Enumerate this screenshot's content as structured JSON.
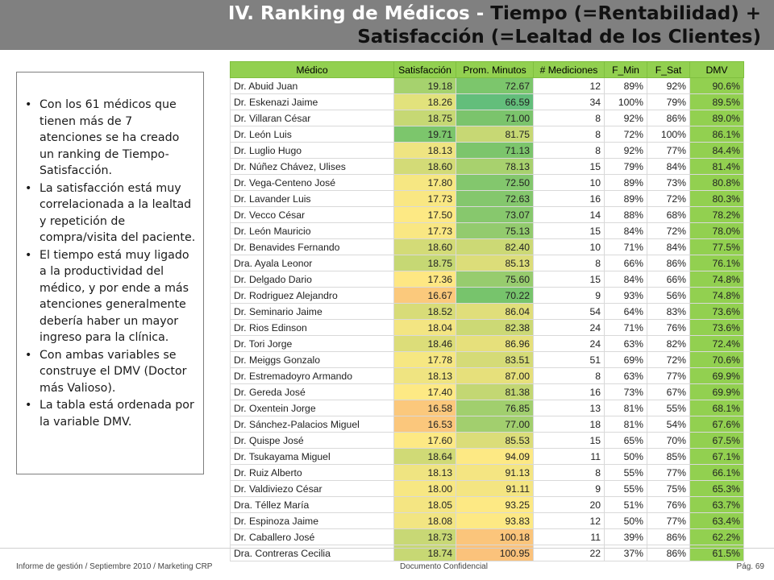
{
  "title": {
    "line1_part1": "IV. Ranking de Médicos - ",
    "line1_part2": "Tiempo (=Rentabilidad) +",
    "line2": "Satisfacción (=Lealtad de los Clientes)"
  },
  "bullets": [
    "Con los 61 médicos que tienen más de 7 atenciones se ha creado un ranking de Tiempo-Satisfacción.",
    "La satisfacción está muy correlacionada a la lealtad y repetición de compra/visita del paciente.",
    "El tiempo está muy ligado a la productividad del médico, y por ende a más atenciones generalmente debería haber un mayor ingreso para la clínica.",
    "Con ambas variables se construye el DMV (Doctor más Valioso).",
    "La tabla está ordenada por la variable DMV."
  ],
  "bullet_symbol": "•",
  "table": {
    "headers": [
      "Médico",
      "Satisfacción",
      "Prom. Minutos",
      "# Mediciones",
      "F_Min",
      "F_Sat",
      "DMV"
    ],
    "rows": [
      [
        "Dr. Abuid Juan",
        "19.18",
        "72.67",
        "12",
        "89%",
        "92%",
        "90.6%"
      ],
      [
        "Dr. Eskenazi Jaime",
        "18.26",
        "66.59",
        "34",
        "100%",
        "79%",
        "89.5%"
      ],
      [
        "Dr. Villaran César",
        "18.75",
        "71.00",
        "8",
        "92%",
        "86%",
        "89.0%"
      ],
      [
        "Dr. León Luis",
        "19.71",
        "81.75",
        "8",
        "72%",
        "100%",
        "86.1%"
      ],
      [
        "Dr. Luglio Hugo",
        "18.13",
        "71.13",
        "8",
        "92%",
        "77%",
        "84.4%"
      ],
      [
        "Dr. Núñez Chávez, Ulises",
        "18.60",
        "78.13",
        "15",
        "79%",
        "84%",
        "81.4%"
      ],
      [
        "Dr. Vega-Centeno José",
        "17.80",
        "72.50",
        "10",
        "89%",
        "73%",
        "80.8%"
      ],
      [
        "Dr. Lavander Luis",
        "17.73",
        "72.63",
        "16",
        "89%",
        "72%",
        "80.3%"
      ],
      [
        "Dr. Vecco César",
        "17.50",
        "73.07",
        "14",
        "88%",
        "68%",
        "78.2%"
      ],
      [
        "Dr. León Mauricio",
        "17.73",
        "75.13",
        "15",
        "84%",
        "72%",
        "78.0%"
      ],
      [
        "Dr. Benavides Fernando",
        "18.60",
        "82.40",
        "10",
        "71%",
        "84%",
        "77.5%"
      ],
      [
        "Dra. Ayala Leonor",
        "18.75",
        "85.13",
        "8",
        "66%",
        "86%",
        "76.1%"
      ],
      [
        "Dr. Delgado Dario",
        "17.36",
        "75.60",
        "15",
        "84%",
        "66%",
        "74.8%"
      ],
      [
        "Dr. Rodriguez Alejandro",
        "16.67",
        "70.22",
        "9",
        "93%",
        "56%",
        "74.8%"
      ],
      [
        "Dr. Seminario Jaime",
        "18.52",
        "86.04",
        "54",
        "64%",
        "83%",
        "73.6%"
      ],
      [
        "Dr. Rios Edinson",
        "18.04",
        "82.38",
        "24",
        "71%",
        "76%",
        "73.6%"
      ],
      [
        "Dr. Tori Jorge",
        "18.46",
        "86.96",
        "24",
        "63%",
        "82%",
        "72.4%"
      ],
      [
        "Dr. Meiggs Gonzalo",
        "17.78",
        "83.51",
        "51",
        "69%",
        "72%",
        "70.6%"
      ],
      [
        "Dr. Estremadoyro Armando",
        "18.13",
        "87.00",
        "8",
        "63%",
        "77%",
        "69.9%"
      ],
      [
        "Dr. Gereda José",
        "17.40",
        "81.38",
        "16",
        "73%",
        "67%",
        "69.9%"
      ],
      [
        "Dr. Oxentein Jorge",
        "16.58",
        "76.85",
        "13",
        "81%",
        "55%",
        "68.1%"
      ],
      [
        "Dr. Sánchez-Palacios Miguel",
        "16.53",
        "77.00",
        "18",
        "81%",
        "54%",
        "67.6%"
      ],
      [
        "Dr. Quispe José",
        "17.60",
        "85.53",
        "15",
        "65%",
        "70%",
        "67.5%"
      ],
      [
        "Dr. Tsukayama Miguel",
        "18.64",
        "94.09",
        "11",
        "50%",
        "85%",
        "67.1%"
      ],
      [
        "Dr. Ruiz Alberto",
        "18.13",
        "91.13",
        "8",
        "55%",
        "77%",
        "66.1%"
      ],
      [
        "Dr. Valdiviezo César",
        "18.00",
        "91.11",
        "9",
        "55%",
        "75%",
        "65.3%"
      ],
      [
        "Dra. Téllez María",
        "18.05",
        "93.25",
        "20",
        "51%",
        "76%",
        "63.7%"
      ],
      [
        "Dr. Espinoza Jaime",
        "18.08",
        "93.83",
        "12",
        "50%",
        "77%",
        "63.4%"
      ],
      [
        "Dr. Caballero José",
        "18.73",
        "100.18",
        "11",
        "39%",
        "86%",
        "62.2%"
      ],
      [
        "Dra. Contreras Cecilia",
        "18.74",
        "100.95",
        "22",
        "37%",
        "86%",
        "61.5%"
      ]
    ]
  },
  "colors": {
    "satisfaccion": [
      "#a6d26e",
      "#e2e27c",
      "#c6d874",
      "#7cc66c",
      "#efe481",
      "#d3db77",
      "#f6e782",
      "#f9e783",
      "#fde984",
      "#f9e783",
      "#d3db77",
      "#c6d874",
      "#fee783",
      "#fbc97c",
      "#d8dc78",
      "#f3e582",
      "#dcdd79",
      "#f6e782",
      "#efe481",
      "#fde984",
      "#fbc87c",
      "#fbc77c",
      "#fde984",
      "#d0da76",
      "#efe481",
      "#f7e783",
      "#f4e582",
      "#f2e582",
      "#c8d875",
      "#c7d874"
    ],
    "prom_minutos": [
      "#7cc66c",
      "#63be7b",
      "#7bc46c",
      "#c7d874",
      "#7cc56c",
      "#a8d16e",
      "#83c76d",
      "#84c76d",
      "#87c86d",
      "#93cb6e",
      "#ccd975",
      "#dcdd79",
      "#97cc6e",
      "#77c46c",
      "#e0de7a",
      "#ccd975",
      "#e6e07b",
      "#d5db77",
      "#e6e07b",
      "#c3d773",
      "#a1cf6e",
      "#a2cf6e",
      "#dbdd79",
      "#fde984",
      "#f4e582",
      "#f4e582",
      "#fde984",
      "#fde984",
      "#fbc57b",
      "#fbc27b"
    ]
  },
  "footer": {
    "left": "Informe de gestión / Septiembre 2010 / Marketing CRP",
    "center": "Documento Confidencial",
    "right": "Pág. 69"
  }
}
